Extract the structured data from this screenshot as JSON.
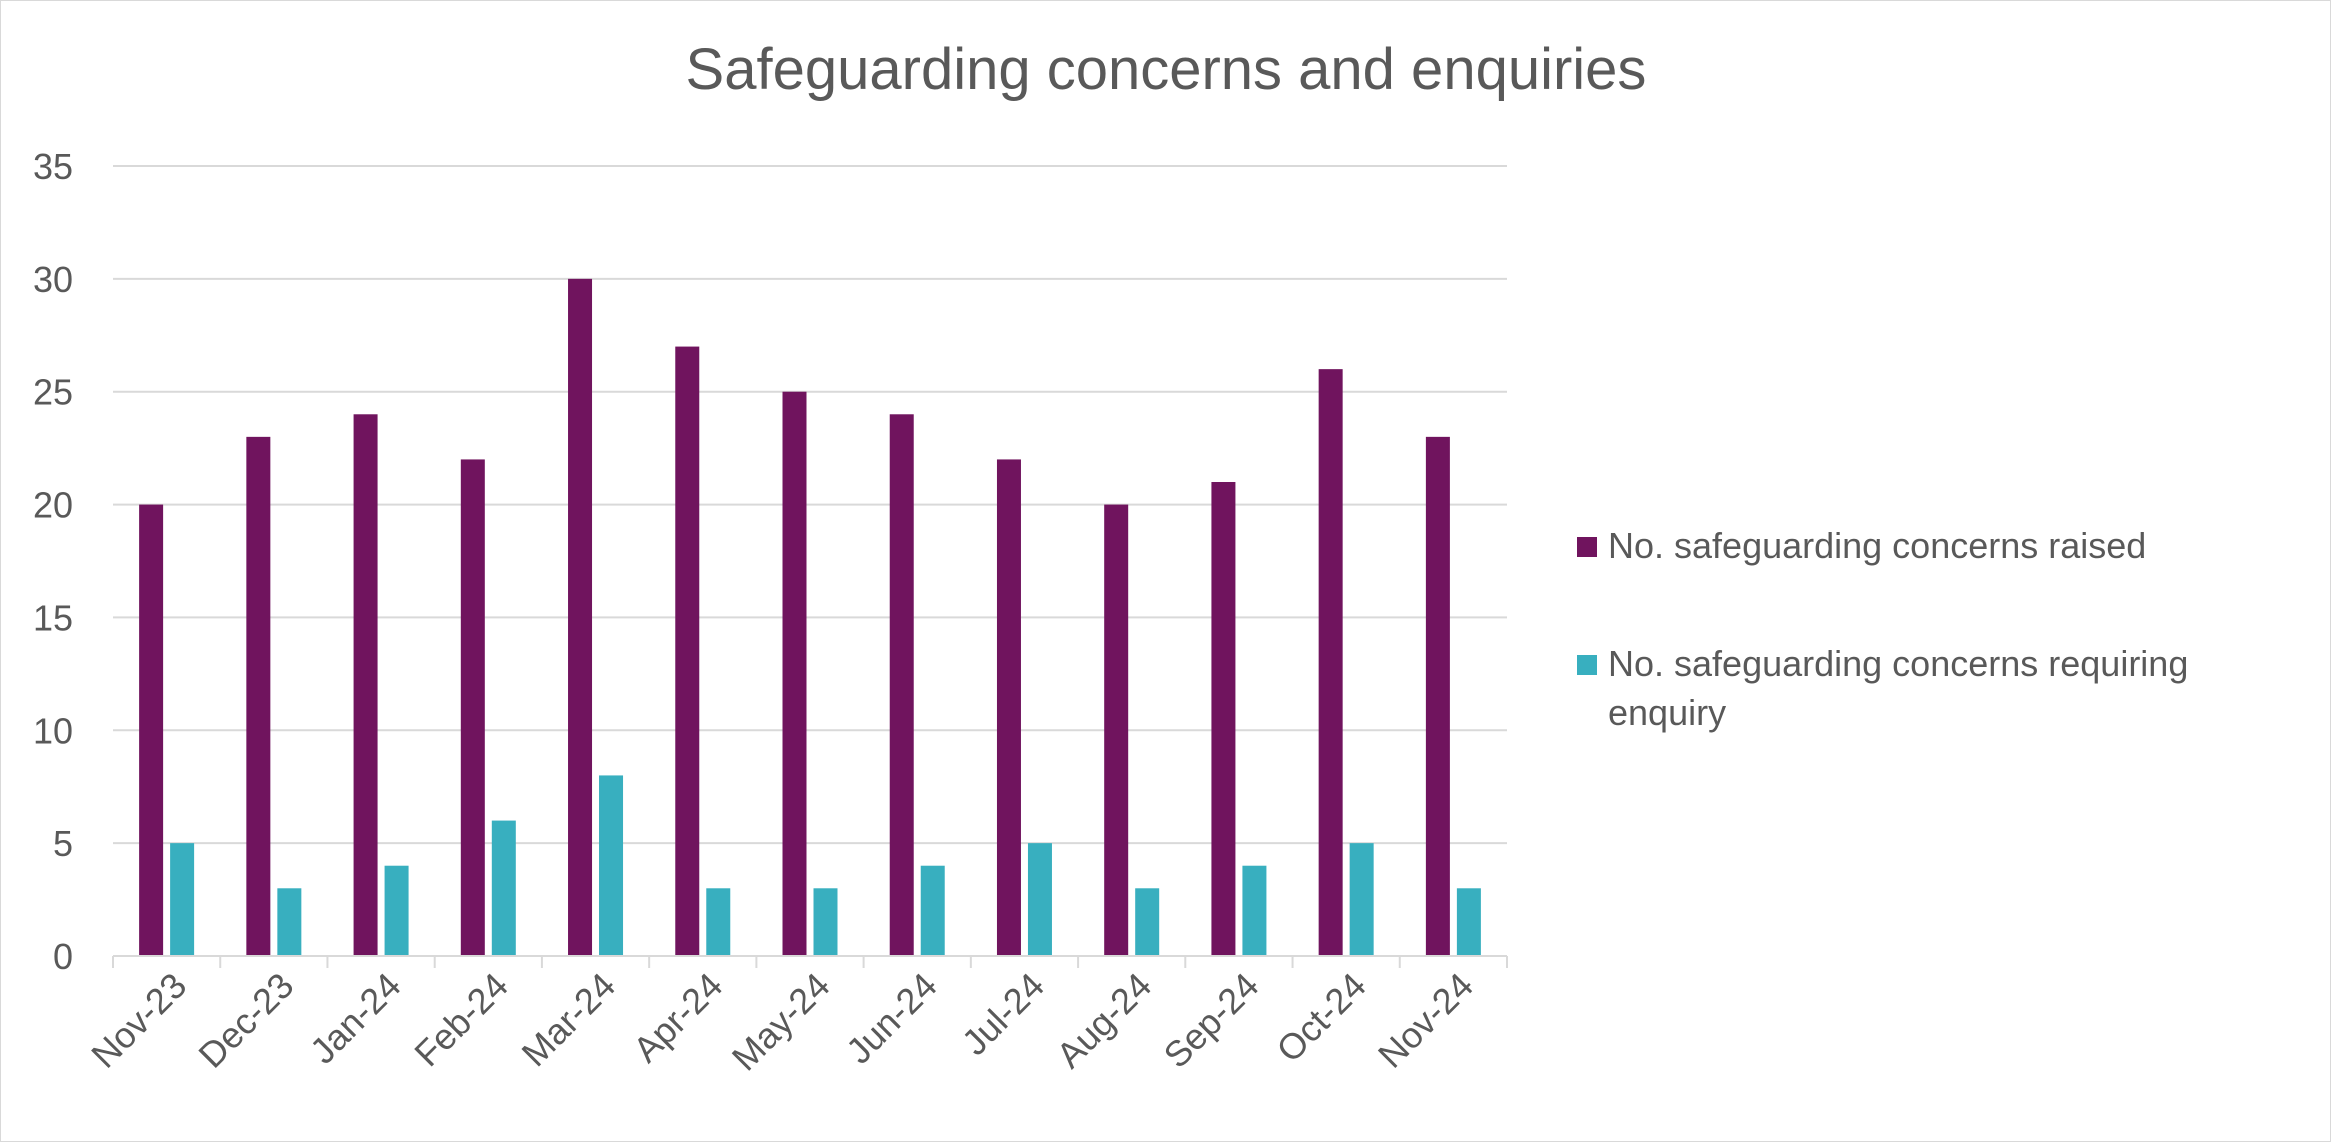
{
  "chart_data": {
    "type": "bar",
    "title": "Safeguarding concerns and enquiries",
    "categories": [
      "Nov-23",
      "Dec-23",
      "Jan-24",
      "Feb-24",
      "Mar-24",
      "Apr-24",
      "May-24",
      "Jun-24",
      "Jul-24",
      "Aug-24",
      "Sep-24",
      "Oct-24",
      "Nov-24"
    ],
    "series": [
      {
        "name": "No. safeguarding concerns raised",
        "color": "#70145E",
        "values": [
          20,
          23,
          24,
          22,
          30,
          27,
          25,
          24,
          22,
          20,
          21,
          26,
          23
        ]
      },
      {
        "name": "No. safeguarding concerns requiring enquiry",
        "color": "#38AFBF",
        "values": [
          5,
          3,
          4,
          6,
          8,
          3,
          3,
          4,
          5,
          3,
          4,
          5,
          3
        ]
      }
    ],
    "ylim": [
      0,
      35
    ],
    "yticks": [
      0,
      5,
      10,
      15,
      20,
      25,
      30,
      35
    ],
    "grid": true,
    "legend_position": "right",
    "xlabel": "",
    "ylabel": ""
  }
}
